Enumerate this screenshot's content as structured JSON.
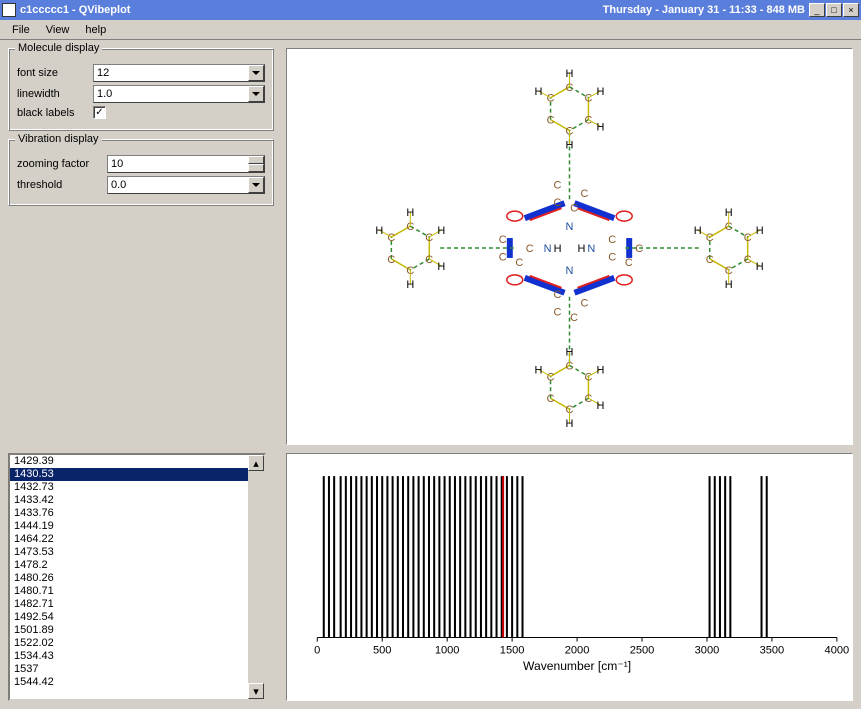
{
  "window": {
    "title": "c1ccccc1 - QVibeplot",
    "status": "Thursday - January 31 - 11:33 - 848 MB"
  },
  "menu": {
    "items": [
      "File",
      "View",
      "help"
    ]
  },
  "molecule_display": {
    "title": "Molecule display",
    "font_size_label": "font size",
    "font_size_value": "12",
    "linewidth_label": "linewidth",
    "linewidth_value": "1.0",
    "black_labels_label": "black labels",
    "black_labels_checked": true
  },
  "vibration_display": {
    "title": "Vibration display",
    "zooming_label": "zooming factor",
    "zooming_value": "10",
    "threshold_label": "threshold",
    "threshold_value": "0.0"
  },
  "frequencies": {
    "items": [
      "1429.39",
      "1430.53",
      "1432.73",
      "1433.42",
      "1433.76",
      "1444.19",
      "1464.22",
      "1473.53",
      "1478.2",
      "1480.26",
      "1480.71",
      "1482.71",
      "1492.54",
      "1501.89",
      "1522.02",
      "1534.43",
      "1537",
      "1544.42"
    ],
    "selected_index": 1
  },
  "spectrum": {
    "xlabel": "Wavenumber [cm⁻¹]",
    "xmin": 0,
    "xmax": 4000,
    "xtick_step": 500,
    "selected_line": 1430.53,
    "selected_color": "#cc0000",
    "line_color": "#000000",
    "lines": [
      50,
      90,
      130,
      180,
      220,
      260,
      300,
      340,
      380,
      420,
      460,
      500,
      540,
      580,
      620,
      660,
      700,
      740,
      780,
      820,
      860,
      900,
      940,
      980,
      1020,
      1060,
      1100,
      1140,
      1180,
      1220,
      1260,
      1300,
      1340,
      1380,
      1420,
      1430,
      1460,
      1500,
      1540,
      1580,
      3020,
      3060,
      3100,
      3140,
      3180,
      3420,
      3460
    ]
  },
  "molecule": {
    "colors": {
      "C": "#8b5a2b",
      "H": "#000000",
      "N": "#1e50a2",
      "bond_c": "#c8b800",
      "bond_dash": "#2e8b2e",
      "vib_blue": "#1030d0",
      "vib_red": "#e02020"
    }
  }
}
